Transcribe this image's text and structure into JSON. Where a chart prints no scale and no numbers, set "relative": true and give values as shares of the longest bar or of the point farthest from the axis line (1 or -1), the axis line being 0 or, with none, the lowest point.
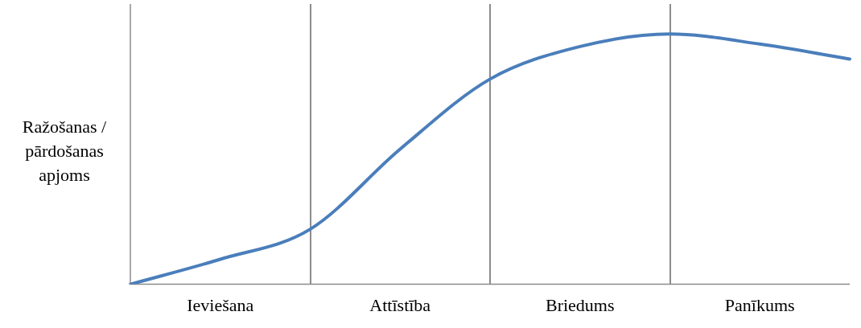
{
  "chart_data": {
    "type": "line",
    "relative": true,
    "ylabel": "Ražošanas / pārdošanas apjoms",
    "color": "#4a7ebb",
    "categories": [
      null,
      "Ieviešana",
      null,
      "Attīstība",
      null,
      "Briedums",
      null,
      "Panīkums",
      null
    ],
    "values": [
      0,
      0.1,
      0.22,
      0.54,
      0.82,
      0.95,
      1,
      0.96,
      0.9
    ],
    "grid": false,
    "legend": false,
    "marker": "none",
    "line_style": "solid"
  }
}
